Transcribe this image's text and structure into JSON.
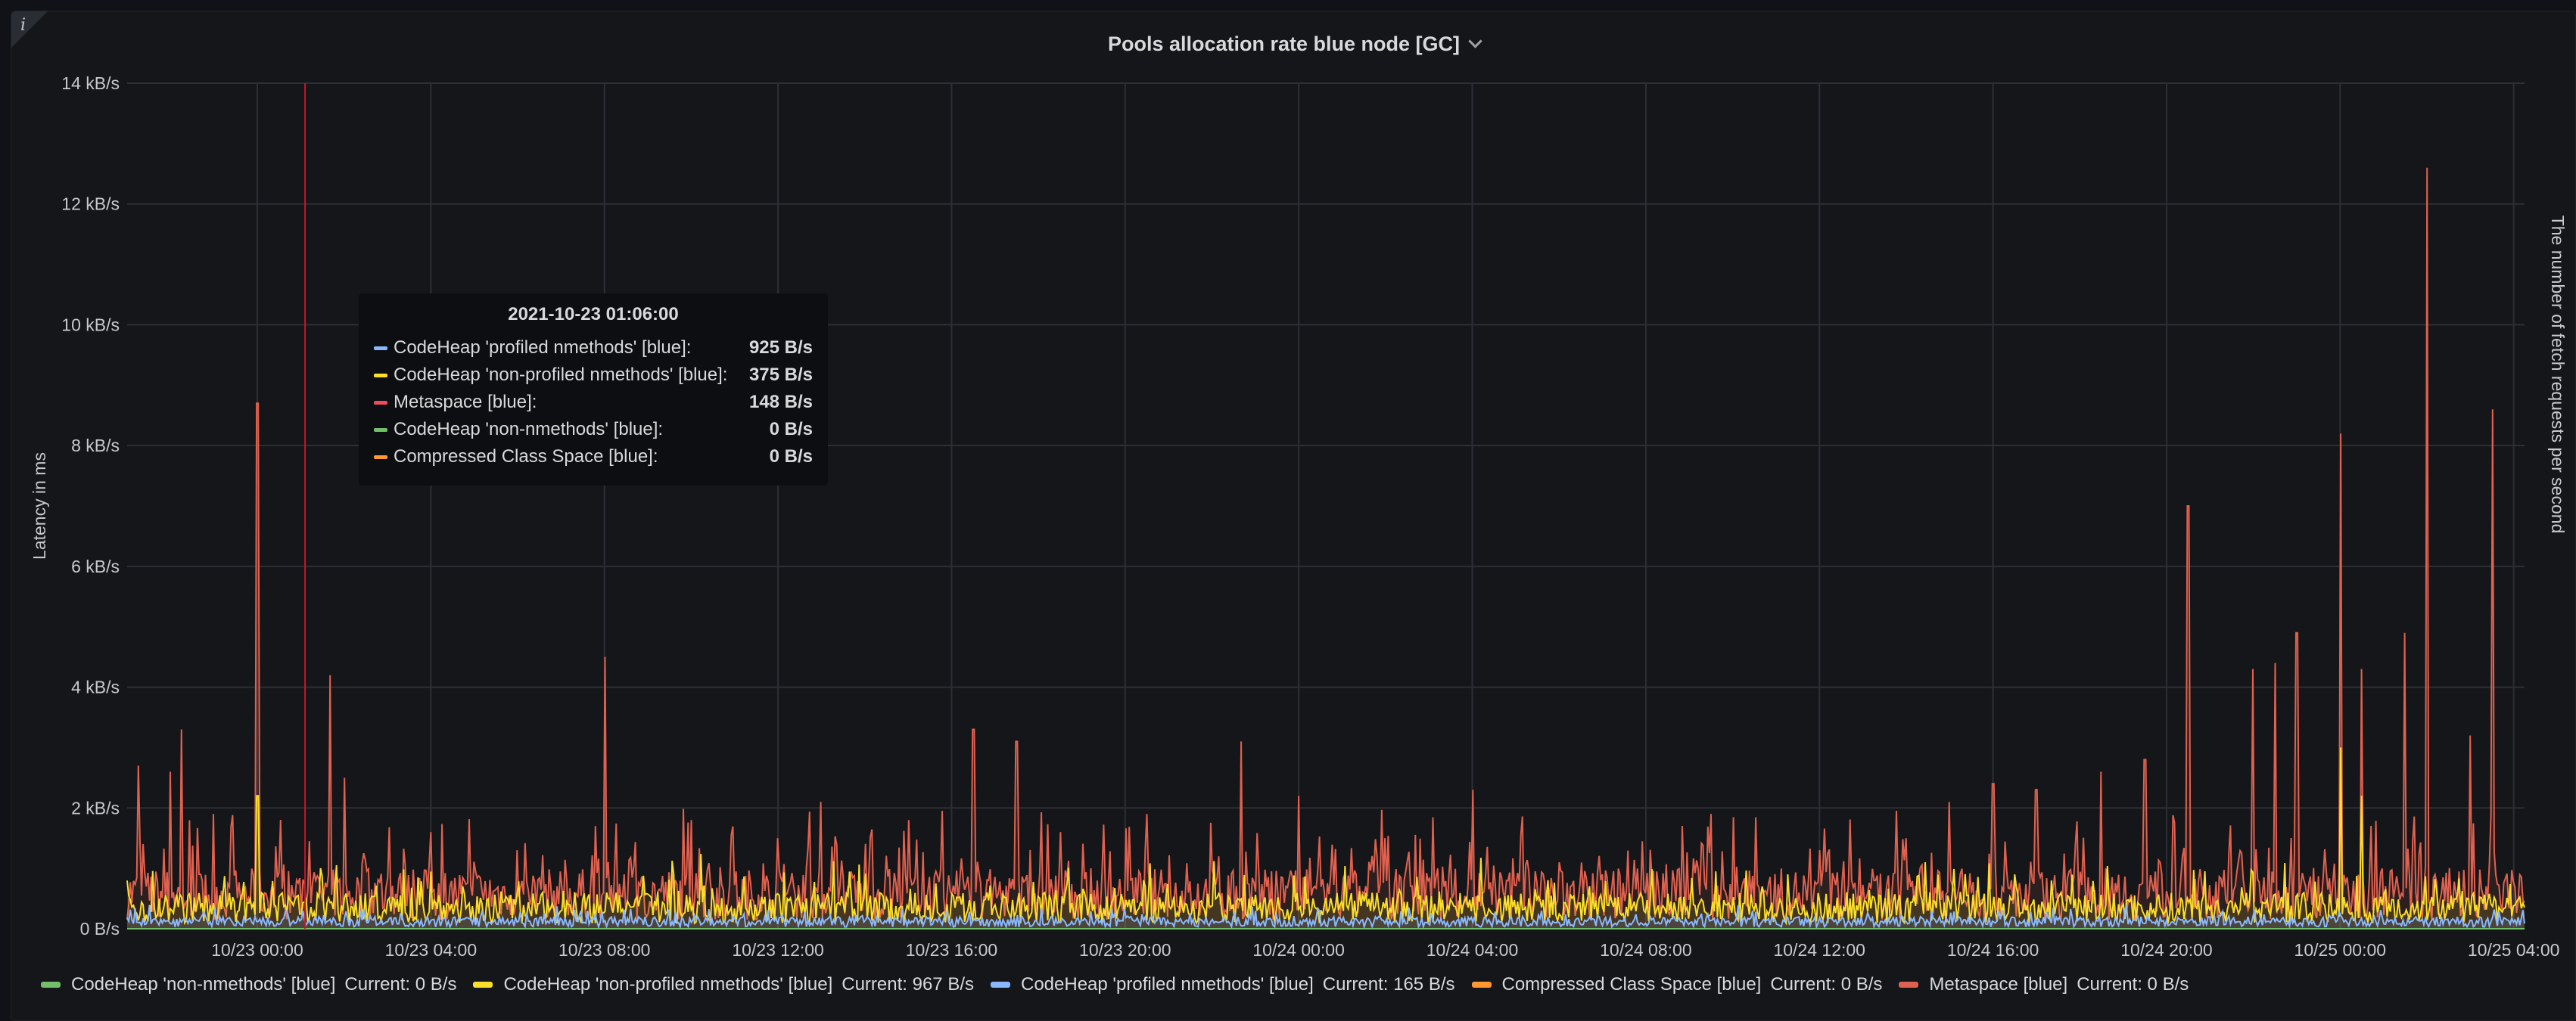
{
  "panel": {
    "title": "Pools allocation rate blue node [GC]",
    "info_icon": "info-icon",
    "menu_icon": "chevron-down-icon"
  },
  "tooltip": {
    "time": "2021-10-23 01:06:00",
    "rows": [
      {
        "name": "CodeHeap 'profiled nmethods' [blue]:",
        "value": "925 B/s",
        "color": "#8ab8ff"
      },
      {
        "name": "CodeHeap 'non-profiled nmethods' [blue]:",
        "value": "375 B/s",
        "color": "#fade2a"
      },
      {
        "name": "Metaspace [blue]:",
        "value": "148 B/s",
        "color": "#f2495c"
      },
      {
        "name": "CodeHeap 'non-nmethods' [blue]:",
        "value": "0 B/s",
        "color": "#73bf69"
      },
      {
        "name": "Compressed Class Space [blue]:",
        "value": "0 B/s",
        "color": "#ff9830"
      }
    ]
  },
  "legend": [
    {
      "name": "CodeHeap 'non-nmethods' [blue]",
      "current": "Current: 0 B/s",
      "color": "#73bf69"
    },
    {
      "name": "CodeHeap 'non-profiled nmethods' [blue]",
      "current": "Current: 967 B/s",
      "color": "#fade2a"
    },
    {
      "name": "CodeHeap 'profiled nmethods' [blue]",
      "current": "Current: 165 B/s",
      "color": "#8ab8ff"
    },
    {
      "name": "Compressed Class Space [blue]",
      "current": "Current: 0 B/s",
      "color": "#ff9830"
    },
    {
      "name": "Metaspace [blue]",
      "current": "Current: 0 B/s",
      "color": "#e0614f"
    }
  ],
  "chart_data": {
    "type": "line",
    "title": "Pools allocation rate blue node [GC]",
    "ylabel": "Latency in ms",
    "ylabel_right": "The number of fetch requests per second",
    "ylim": [
      0,
      14
    ],
    "yunit": "kB/s",
    "yticks": [
      "0 B/s",
      "2 kB/s",
      "4 kB/s",
      "6 kB/s",
      "8 kB/s",
      "10 kB/s",
      "12 kB/s",
      "14 kB/s"
    ],
    "xrange": [
      "2021-10-22 21:00",
      "2021-10-25 04:15"
    ],
    "xticks": [
      "10/23 00:00",
      "10/23 04:00",
      "10/23 08:00",
      "10/23 12:00",
      "10/23 16:00",
      "10/23 20:00",
      "10/24 00:00",
      "10/24 04:00",
      "10/24 08:00",
      "10/24 12:00",
      "10/24 16:00",
      "10/24 20:00",
      "10/25 00:00",
      "10/25 04:00"
    ],
    "grid": true,
    "cursor_time": "2021-10-23 01:06",
    "series": [
      {
        "name": "Metaspace [blue]",
        "color": "#e0614f",
        "baseline_kbs": 0.5,
        "peaks": [
          [
            "2021-10-22 21:15",
            2.7
          ],
          [
            "2021-10-22 22:00",
            2.6
          ],
          [
            "2021-10-22 22:15",
            3.3
          ],
          [
            "2021-10-22 23:00",
            1.9
          ],
          [
            "2021-10-23 00:00",
            8.7
          ],
          [
            "2021-10-23 01:40",
            4.2
          ],
          [
            "2021-10-23 02:00",
            2.5
          ],
          [
            "2021-10-23 04:00",
            1.6
          ],
          [
            "2021-10-23 06:00",
            1.3
          ],
          [
            "2021-10-23 08:00",
            4.5
          ],
          [
            "2021-10-23 10:00",
            1.8
          ],
          [
            "2021-10-23 12:00",
            1.5
          ],
          [
            "2021-10-23 13:00",
            2.1
          ],
          [
            "2021-10-23 15:00",
            1.8
          ],
          [
            "2021-10-23 16:30",
            3.3
          ],
          [
            "2021-10-23 17:30",
            3.1
          ],
          [
            "2021-10-23 18:30",
            1.6
          ],
          [
            "2021-10-23 20:30",
            1.9
          ],
          [
            "2021-10-23 22:40",
            3.1
          ],
          [
            "2021-10-24 00:00",
            2.2
          ],
          [
            "2021-10-24 02:00",
            1.5
          ],
          [
            "2021-10-24 04:00",
            2.3
          ],
          [
            "2021-10-24 06:00",
            1.1
          ],
          [
            "2021-10-24 09:30",
            1.9
          ],
          [
            "2021-10-24 12:00",
            1.3
          ],
          [
            "2021-10-24 14:00",
            1.5
          ],
          [
            "2021-10-24 15:00",
            2.1
          ],
          [
            "2021-10-24 16:00",
            2.4
          ],
          [
            "2021-10-24 17:00",
            2.3
          ],
          [
            "2021-10-24 18:30",
            2.6
          ],
          [
            "2021-10-24 19:30",
            2.8
          ],
          [
            "2021-10-24 20:30",
            7.0
          ],
          [
            "2021-10-24 22:00",
            4.3
          ],
          [
            "2021-10-24 22:30",
            4.4
          ],
          [
            "2021-10-24 23:00",
            4.9
          ],
          [
            "2021-10-25 00:00",
            8.2
          ],
          [
            "2021-10-25 00:30",
            4.3
          ],
          [
            "2021-10-25 01:30",
            4.9
          ],
          [
            "2021-10-25 02:00",
            12.6
          ],
          [
            "2021-10-25 03:00",
            3.2
          ],
          [
            "2021-10-25 03:30",
            8.6
          ]
        ]
      },
      {
        "name": "CodeHeap 'non-profiled nmethods' [blue]",
        "color": "#fade2a",
        "baseline_kbs": 0.3,
        "peaks": [
          [
            "2021-10-23 00:00",
            2.2
          ],
          [
            "2021-10-25 00:00",
            3.0
          ],
          [
            "2021-10-25 00:30",
            2.2
          ]
        ]
      },
      {
        "name": "CodeHeap 'profiled nmethods' [blue]",
        "color": "#8ab8ff",
        "baseline_kbs": 0.1,
        "peaks": []
      },
      {
        "name": "CodeHeap 'non-nmethods' [blue]",
        "color": "#73bf69",
        "baseline_kbs": 0,
        "peaks": []
      },
      {
        "name": "Compressed Class Space [blue]",
        "color": "#ff9830",
        "baseline_kbs": 0,
        "peaks": []
      }
    ]
  }
}
